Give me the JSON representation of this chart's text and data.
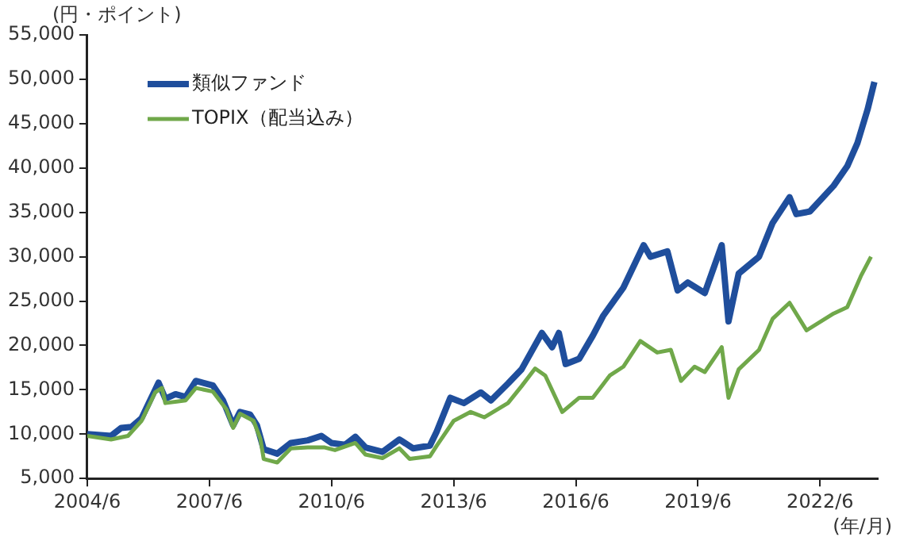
{
  "chart_data": {
    "type": "line",
    "ylabel": "(円・ポイント)",
    "xlabel": "(年/月)",
    "xlim": [
      "2004-06",
      "2023-11"
    ],
    "xticks": [
      {
        "value": "2004-06",
        "label": "2004/6"
      },
      {
        "value": "2007-06",
        "label": "2007/6"
      },
      {
        "value": "2010-06",
        "label": "2010/6"
      },
      {
        "value": "2013-06",
        "label": "2013/6"
      },
      {
        "value": "2016-06",
        "label": "2016/6"
      },
      {
        "value": "2019-06",
        "label": "2019/6"
      },
      {
        "value": "2022-06",
        "label": "2022/6"
      }
    ],
    "ylim": [
      5000,
      55000
    ],
    "yticks": [
      {
        "value": 5000,
        "label": "5,000"
      },
      {
        "value": 10000,
        "label": "10,000"
      },
      {
        "value": 15000,
        "label": "15,000"
      },
      {
        "value": 20000,
        "label": "20,000"
      },
      {
        "value": 25000,
        "label": "25,000"
      },
      {
        "value": 30000,
        "label": "30,000"
      },
      {
        "value": 35000,
        "label": "35,000"
      },
      {
        "value": 40000,
        "label": "40,000"
      },
      {
        "value": 45000,
        "label": "45,000"
      },
      {
        "value": 50000,
        "label": "50,000"
      },
      {
        "value": 55000,
        "label": "55,000"
      }
    ],
    "grid": false,
    "legend": "top left",
    "marker": "none",
    "line_style": "solid",
    "series": [
      {
        "name": "類似ファンド",
        "color": "#1f4e9c",
        "x": [
          "2004-06",
          "2005-01",
          "2005-04",
          "2005-07",
          "2005-10",
          "2006-02",
          "2006-03",
          "2006-05",
          "2006-08",
          "2006-11",
          "2007-02",
          "2007-07",
          "2007-10",
          "2008-01",
          "2008-03",
          "2008-06",
          "2008-08",
          "2008-10",
          "2009-02",
          "2009-06",
          "2009-11",
          "2010-03",
          "2010-06",
          "2010-10",
          "2011-01",
          "2011-04",
          "2011-09",
          "2012-02",
          "2012-06",
          "2012-11",
          "2013-01",
          "2013-05",
          "2013-09",
          "2014-02",
          "2014-05",
          "2014-10",
          "2015-02",
          "2015-08",
          "2015-11",
          "2016-01",
          "2016-03",
          "2016-07",
          "2016-11",
          "2017-02",
          "2017-08",
          "2018-02",
          "2018-04",
          "2018-09",
          "2018-12",
          "2019-03",
          "2019-08",
          "2020-01",
          "2020-03",
          "2020-06",
          "2020-12",
          "2021-04",
          "2021-09",
          "2021-11",
          "2022-03",
          "2022-10",
          "2023-02",
          "2023-05",
          "2023-08",
          "2023-10"
        ],
        "values": [
          10000,
          9800,
          10700,
          10800,
          11800,
          15000,
          15800,
          14000,
          14500,
          14200,
          16000,
          15500,
          13800,
          11000,
          12500,
          12200,
          11000,
          8300,
          7800,
          9000,
          9300,
          9800,
          9000,
          8800,
          9700,
          8500,
          8000,
          9400,
          8400,
          8700,
          10300,
          14100,
          13500,
          14700,
          13800,
          15700,
          17300,
          21400,
          19800,
          21400,
          17900,
          18500,
          21100,
          23300,
          26500,
          31300,
          30000,
          30600,
          26200,
          27100,
          25900,
          31300,
          22700,
          28100,
          30000,
          33800,
          36700,
          34800,
          35100,
          38000,
          40200,
          42800,
          46600,
          49700
        ]
      },
      {
        "name": "TOPIX（配当込み）",
        "color": "#70a84a",
        "x": [
          "2004-06",
          "2005-01",
          "2005-06",
          "2005-10",
          "2006-02",
          "2006-04",
          "2006-05",
          "2006-11",
          "2007-02",
          "2007-07",
          "2007-11",
          "2008-01",
          "2008-03",
          "2008-07",
          "2008-09",
          "2008-10",
          "2009-02",
          "2009-06",
          "2009-11",
          "2010-04",
          "2010-07",
          "2011-01",
          "2011-04",
          "2011-09",
          "2012-02",
          "2012-05",
          "2012-11",
          "2013-01",
          "2013-06",
          "2013-11",
          "2014-03",
          "2014-10",
          "2015-02",
          "2015-06",
          "2015-09",
          "2016-02",
          "2016-07",
          "2016-11",
          "2017-04",
          "2017-08",
          "2018-01",
          "2018-06",
          "2018-10",
          "2019-01",
          "2019-05",
          "2019-08",
          "2020-01",
          "2020-03",
          "2020-06",
          "2020-12",
          "2021-04",
          "2021-09",
          "2022-02",
          "2022-10",
          "2023-02",
          "2023-06",
          "2023-09"
        ],
        "values": [
          9800,
          9400,
          9800,
          11500,
          14700,
          15200,
          13500,
          13800,
          15200,
          14800,
          12800,
          10700,
          12300,
          11500,
          9500,
          7200,
          6800,
          8400,
          8500,
          8500,
          8200,
          9000,
          7700,
          7300,
          8400,
          7200,
          7500,
          8700,
          11500,
          12500,
          11900,
          13500,
          15400,
          17400,
          16600,
          12500,
          14100,
          14100,
          16600,
          17600,
          20500,
          19200,
          19500,
          16000,
          17600,
          17000,
          19800,
          14100,
          17300,
          19500,
          23000,
          24800,
          21700,
          23600,
          24300,
          27800,
          30000
        ]
      }
    ]
  }
}
